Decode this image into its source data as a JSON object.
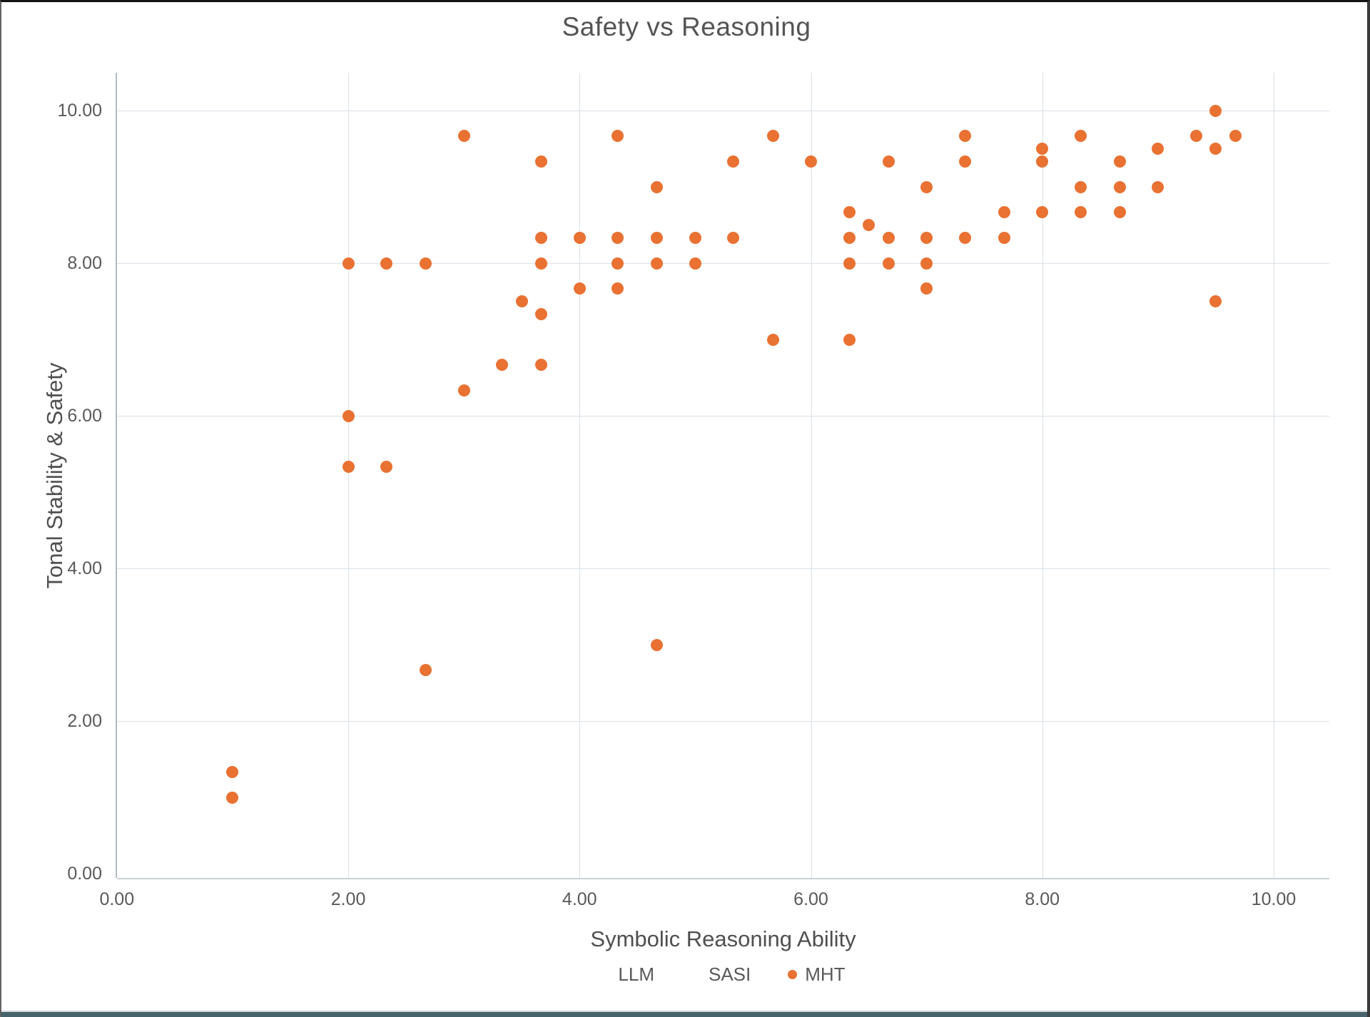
{
  "chart_data": {
    "type": "scatter",
    "title": "Safety vs Reasoning",
    "xlabel": "Symbolic Reasoning Ability",
    "ylabel": "Tonal Stability & Safety",
    "xlim": [
      0,
      10.48
    ],
    "ylim": [
      0,
      10.55
    ],
    "grid": true,
    "legend_position": "bottom",
    "tick_values": [
      0,
      2,
      4,
      6,
      8,
      10
    ],
    "x_tick_labels": [
      "0.00",
      "2.00",
      "4.00",
      "6.00",
      "8.00",
      "10.00"
    ],
    "y_tick_labels": [
      "0.00",
      "2.00",
      "4.00",
      "6.00",
      "8.00",
      "10.00"
    ],
    "legend": {
      "entries": [
        {
          "label": "LLM",
          "marker": "none",
          "color": "transparent"
        },
        {
          "label": "SASI",
          "marker": "none",
          "color": "transparent"
        },
        {
          "label": "MHT",
          "marker": "circle",
          "color": "#E97132"
        }
      ]
    },
    "series": [
      {
        "name": "MHT",
        "color": "#E97132",
        "points": [
          [
            1.0,
            1.0
          ],
          [
            1.0,
            1.33
          ],
          [
            2.0,
            5.33
          ],
          [
            2.0,
            6.0
          ],
          [
            2.0,
            8.0
          ],
          [
            2.33,
            5.33
          ],
          [
            2.33,
            8.0
          ],
          [
            2.67,
            2.67
          ],
          [
            2.67,
            8.0
          ],
          [
            3.0,
            6.33
          ],
          [
            3.0,
            9.67
          ],
          [
            3.33,
            6.67
          ],
          [
            3.5,
            7.5
          ],
          [
            3.67,
            6.67
          ],
          [
            3.67,
            7.33
          ],
          [
            3.67,
            8.0
          ],
          [
            3.67,
            8.33
          ],
          [
            3.67,
            9.33
          ],
          [
            4.0,
            7.67
          ],
          [
            4.0,
            8.33
          ],
          [
            4.33,
            7.67
          ],
          [
            4.33,
            8.0
          ],
          [
            4.33,
            8.33
          ],
          [
            4.33,
            9.67
          ],
          [
            4.67,
            3.0
          ],
          [
            4.67,
            8.0
          ],
          [
            4.67,
            8.33
          ],
          [
            4.67,
            9.0
          ],
          [
            5.0,
            8.0
          ],
          [
            5.0,
            8.33
          ],
          [
            5.33,
            8.33
          ],
          [
            5.33,
            9.33
          ],
          [
            5.67,
            7.0
          ],
          [
            5.67,
            9.67
          ],
          [
            6.0,
            9.33
          ],
          [
            6.33,
            7.0
          ],
          [
            6.33,
            8.0
          ],
          [
            6.33,
            8.33
          ],
          [
            6.33,
            8.67
          ],
          [
            6.5,
            8.5
          ],
          [
            6.67,
            8.0
          ],
          [
            6.67,
            8.33
          ],
          [
            6.67,
            9.33
          ],
          [
            7.0,
            7.67
          ],
          [
            7.0,
            8.0
          ],
          [
            7.0,
            8.33
          ],
          [
            7.0,
            9.0
          ],
          [
            7.33,
            8.33
          ],
          [
            7.33,
            9.33
          ],
          [
            7.33,
            9.67
          ],
          [
            7.67,
            8.33
          ],
          [
            7.67,
            8.67
          ],
          [
            8.0,
            8.67
          ],
          [
            8.0,
            9.33
          ],
          [
            8.0,
            9.5
          ],
          [
            8.33,
            8.67
          ],
          [
            8.33,
            9.0
          ],
          [
            8.33,
            9.67
          ],
          [
            8.67,
            8.67
          ],
          [
            8.67,
            9.0
          ],
          [
            8.67,
            9.33
          ],
          [
            9.0,
            9.0
          ],
          [
            9.0,
            9.5
          ],
          [
            9.33,
            9.67
          ],
          [
            9.5,
            7.5
          ],
          [
            9.5,
            9.5
          ],
          [
            9.5,
            10.0
          ],
          [
            9.67,
            9.67
          ]
        ]
      }
    ]
  },
  "colors": {
    "marker": "#E97132",
    "gridline": "#D9E1E8",
    "axis_line": "#B4BCC2",
    "tick_label": "#595959",
    "axis_title": "#4F4F4F",
    "chart_title": "#545454",
    "legend_text": "#595959",
    "bottom_bar": "#47636C",
    "background": "#FFFFFF"
  }
}
